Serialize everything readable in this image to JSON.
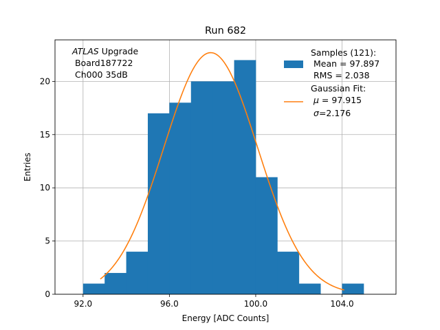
{
  "chart_data": {
    "type": "bar",
    "title": "Run 682",
    "xlabel": "Energy [ADC Counts]",
    "ylabel": "Entries",
    "xlim": [
      90.7,
      106.5
    ],
    "ylim": [
      0,
      23.9
    ],
    "grid": true,
    "x_ticks": [
      92,
      96,
      100,
      104
    ],
    "x_tick_labels": [
      "92.0",
      "96.0",
      "100.0",
      "104.0"
    ],
    "y_ticks": [
      0,
      5,
      10,
      15,
      20
    ],
    "y_tick_labels": [
      "0",
      "5",
      "10",
      "15",
      "20"
    ],
    "bins": [
      {
        "lo": 92,
        "hi": 93,
        "count": 1
      },
      {
        "lo": 93,
        "hi": 94,
        "count": 2
      },
      {
        "lo": 94,
        "hi": 95,
        "count": 4
      },
      {
        "lo": 95,
        "hi": 96,
        "count": 17
      },
      {
        "lo": 96,
        "hi": 97,
        "count": 18
      },
      {
        "lo": 97,
        "hi": 98,
        "count": 20
      },
      {
        "lo": 98,
        "hi": 99,
        "count": 20
      },
      {
        "lo": 99,
        "hi": 100,
        "count": 22
      },
      {
        "lo": 100,
        "hi": 101,
        "count": 11
      },
      {
        "lo": 101,
        "hi": 102,
        "count": 4
      },
      {
        "lo": 102,
        "hi": 103,
        "count": 1
      },
      {
        "lo": 103,
        "hi": 104,
        "count": 0
      },
      {
        "lo": 104,
        "hi": 105,
        "count": 1
      }
    ],
    "fit": {
      "name": "Gaussian Fit",
      "mu": 97.915,
      "sigma": 2.176,
      "amplitude": 22.7,
      "x_range": [
        92.8,
        104.1
      ]
    },
    "colors": {
      "bars": "#1f77b4",
      "fit": "#ff7f0e",
      "grid": "#b0b0b0"
    },
    "annotation": {
      "line1_italic": "ATLAS",
      "line1_rest": " Upgrade",
      "line2": " Board187722",
      "line3": " Ch000 35dB"
    },
    "legend": {
      "placement": "top-right",
      "samples_line1": "Samples (121):",
      "samples_line2": " Mean = 97.897",
      "samples_line3": " RMS = 2.038",
      "fit_line1": "Gaussian Fit:",
      "fit_mu_symbol": "μ",
      "fit_mu_value": " = 97.915",
      "fit_sigma_symbol": "σ",
      "fit_sigma_value": "=2.176"
    }
  }
}
